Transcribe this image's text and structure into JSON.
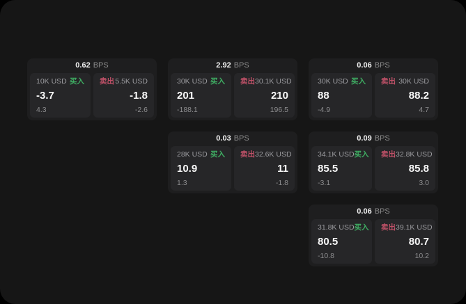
{
  "labels": {
    "bps_unit": "BPS",
    "buy": "买入",
    "sell": "卖出"
  },
  "colors": {
    "outer_background": "#000000",
    "surface_background": "#161616",
    "card_background": "#1e1e1f",
    "panel_background": "#262628",
    "buy_green": "#3fae63",
    "sell_red": "#bf5168",
    "text_primary": "#f5f5f5",
    "text_secondary": "#9c9ca0",
    "text_muted": "#8c8c8e"
  },
  "cards": [
    {
      "bps": "0.62",
      "buy": {
        "size": "10K USD",
        "price": "-3.7",
        "delta": "4.3"
      },
      "sell": {
        "size": "5.5K USD",
        "price": "-1.8",
        "delta": "-2.6"
      }
    },
    {
      "bps": "2.92",
      "buy": {
        "size": "30K USD",
        "price": "201",
        "delta": "-188.1"
      },
      "sell": {
        "size": "30.1K USD",
        "price": "210",
        "delta": "196.5"
      }
    },
    {
      "bps": "0.06",
      "buy": {
        "size": "30K USD",
        "price": "88",
        "delta": "-4.9"
      },
      "sell": {
        "size": "30K USD",
        "price": "88.2",
        "delta": "4.7"
      }
    },
    {
      "bps": "0.03",
      "buy": {
        "size": "28K USD",
        "price": "10.9",
        "delta": "1.3"
      },
      "sell": {
        "size": "32.6K USD",
        "price": "11",
        "delta": "-1.8"
      }
    },
    {
      "bps": "0.09",
      "buy": {
        "size": "34.1K USD",
        "price": "85.5",
        "delta": "-3.1"
      },
      "sell": {
        "size": "32.8K USD",
        "price": "85.8",
        "delta": "3.0"
      }
    },
    {
      "bps": "0.06",
      "buy": {
        "size": "31.8K USD",
        "price": "80.5",
        "delta": "-10.8"
      },
      "sell": {
        "size": "39.1K USD",
        "price": "80.7",
        "delta": "10.2"
      }
    }
  ]
}
